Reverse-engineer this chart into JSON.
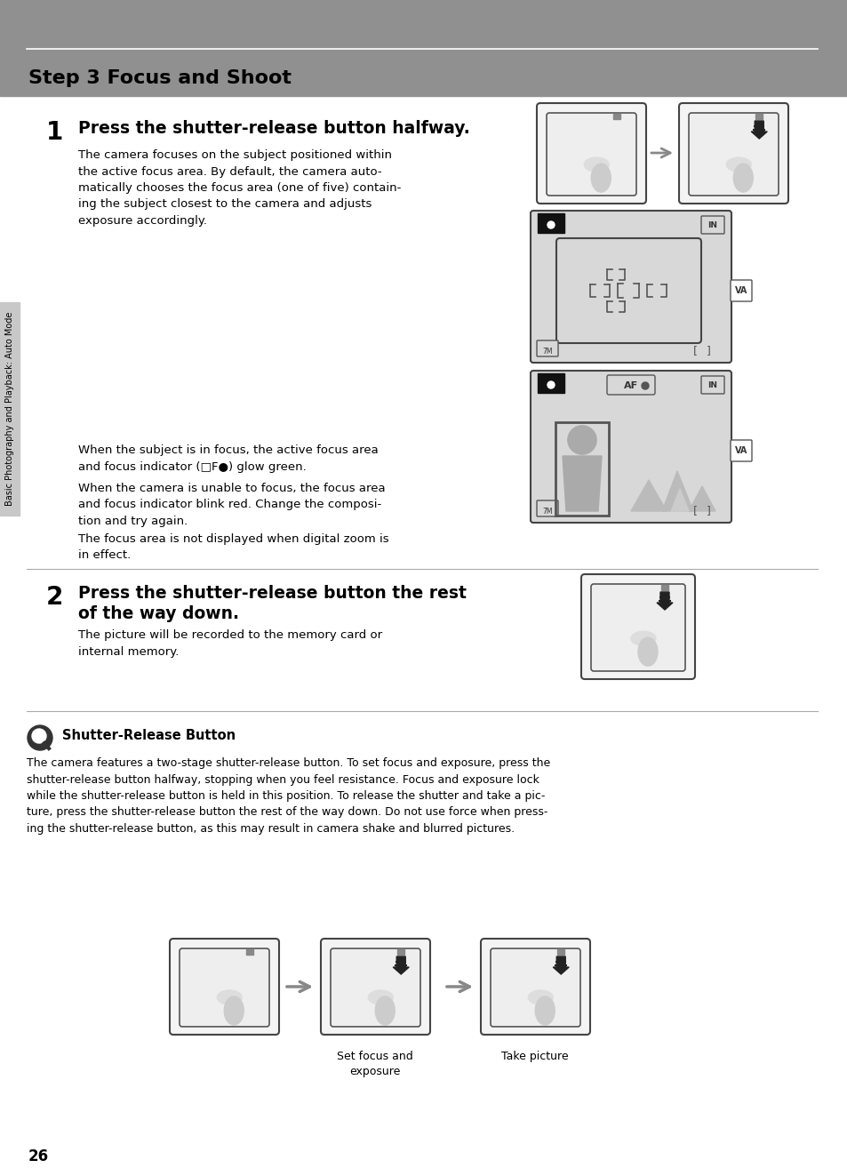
{
  "page_bg": "#ffffff",
  "header_bg": "#909090",
  "header_text": "Step 3 Focus and Shoot",
  "header_text_color": "#000000",
  "sidebar_bg": "#c8c8c8",
  "sidebar_text": "Basic Photography and Playback: Auto Mode",
  "page_number": "26",
  "section1_num": "1",
  "section1_title": "Press the shutter-release button halfway.",
  "section1_body": "The camera focuses on the subject positioned within\nthe active focus area. By default, the camera auto-\nmatically chooses the focus area (one of five) contain-\ning the subject closest to the camera and adjusts\nexposure accordingly.",
  "section1_body2": "When the subject is in focus, the active focus area\nand focus indicator (□F●) glow green.",
  "section1_body3": "When the camera is unable to focus, the focus area\nand focus indicator blink red. Change the composi-\ntion and try again.",
  "section1_body4": "The focus area is not displayed when digital zoom is\nin effect.",
  "section2_num": "2",
  "section2_title": "Press the shutter-release button the rest\nof the way down.",
  "section2_body": "The picture will be recorded to the memory card or\ninternal memory.",
  "note_title": "Shutter-Release Button",
  "note_body": "The camera features a two-stage shutter-release button. To set focus and exposure, press the\nshutter-release button halfway, stopping when you feel resistance. Focus and exposure lock\nwhile the shutter-release button is held in this position. To release the shutter and take a pic-\nture, press the shutter-release button the rest of the way down. Do not use force when press-\ning the shutter-release button, as this may result in camera shake and blurred pictures.",
  "bottom_label1": "Set focus and\nexposure",
  "bottom_label2": "Take picture",
  "divider_color": "#aaaaaa",
  "text_color": "#000000",
  "body_fontsize": 9.5,
  "title_fontsize": 13.5,
  "header_fontsize": 16,
  "step_num_fontsize": 20
}
